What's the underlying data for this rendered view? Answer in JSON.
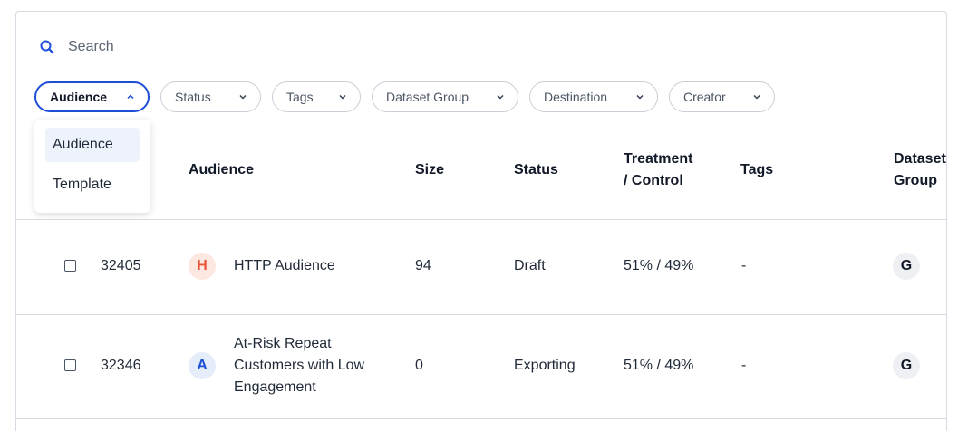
{
  "search": {
    "placeholder": "Search",
    "value": ""
  },
  "filters": [
    {
      "label": "Audience",
      "active": true
    },
    {
      "label": "Status"
    },
    {
      "label": "Tags"
    },
    {
      "label": "Dataset Group"
    },
    {
      "label": "Destination"
    },
    {
      "label": "Creator"
    }
  ],
  "dropdown": {
    "options": [
      "Audience",
      "Template"
    ],
    "selected": "Audience"
  },
  "table": {
    "columns": {
      "audience": "Audience",
      "size": "Size",
      "status": "Status",
      "treatment_line1": "Treatment",
      "treatment_line2": "/ Control",
      "tags": "Tags",
      "dataset_line1": "Dataset",
      "dataset_line2": "Group"
    },
    "rows": [
      {
        "id": "32405",
        "avatar": "H",
        "name": "HTTP Audience",
        "size": "94",
        "status": "Draft",
        "treatment": "51% / 49%",
        "tags": "-",
        "dataset_group": "G"
      },
      {
        "id": "32346",
        "avatar": "A",
        "name_line1": "At-Risk Repeat",
        "name_line2": "Customers with Low",
        "name_line3": "Engagement",
        "size": "0",
        "status": "Exporting",
        "treatment": "51% / 49%",
        "tags": "-",
        "dataset_group": "G"
      }
    ]
  },
  "colors": {
    "accent": "#1d4ed8",
    "border": "#d6dbe3",
    "avatar_h": "#e8573a"
  }
}
